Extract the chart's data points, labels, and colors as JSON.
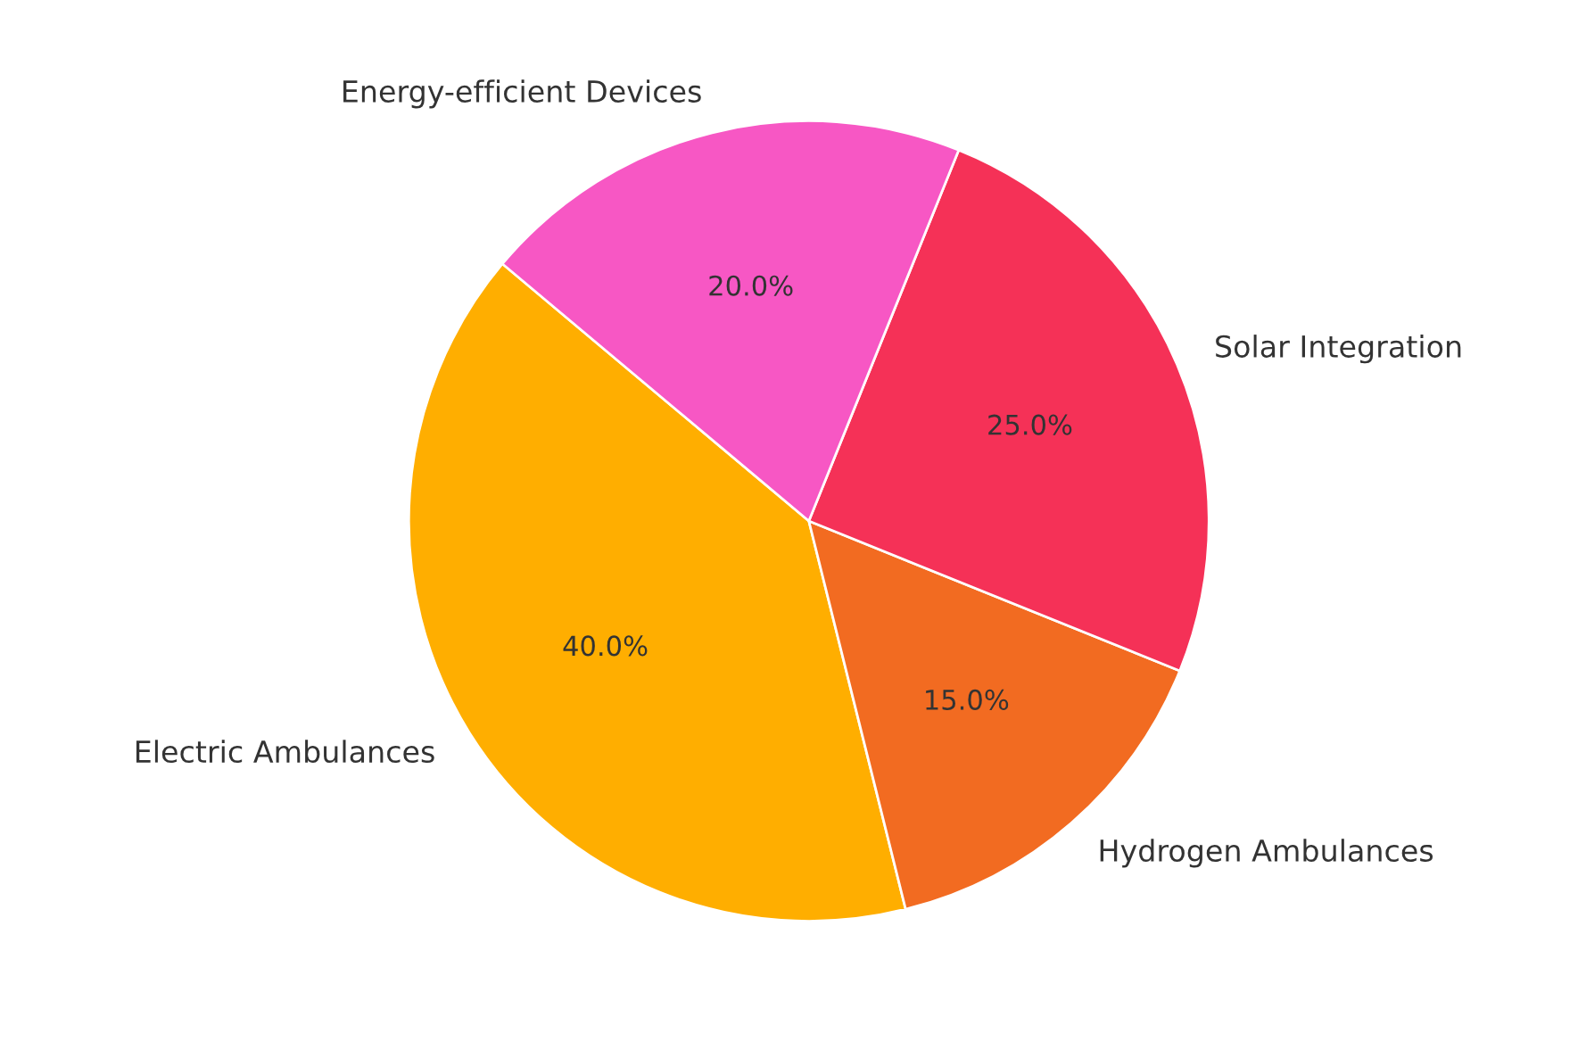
{
  "chart_data": {
    "type": "pie",
    "categories": [
      "Electric Ambulances",
      "Hydrogen Ambulances",
      "Solar Integration",
      "Energy-efficient Devices"
    ],
    "values": [
      40,
      15,
      25,
      20
    ],
    "colors": [
      "#ffae00",
      "#f26b21",
      "#f53157",
      "#f757c4"
    ],
    "value_labels": [
      "40.0%",
      "15.0%",
      "25.0%",
      "20.0%"
    ]
  }
}
